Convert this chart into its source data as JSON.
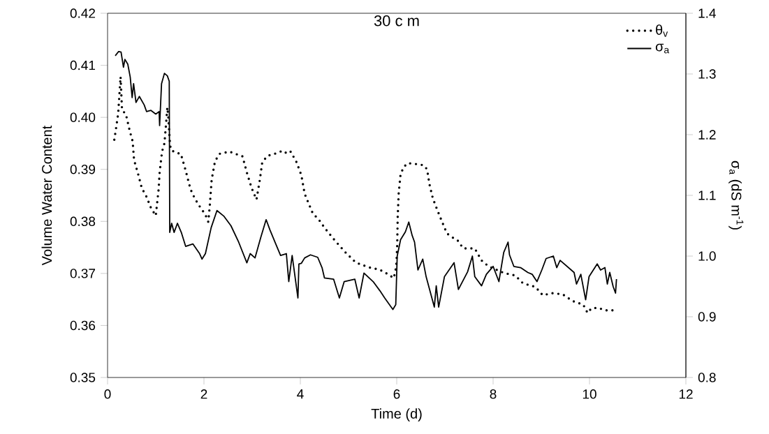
{
  "chart_data": {
    "type": "line",
    "title": "30 c m",
    "xlabel": "Time (d)",
    "ylabel": "Volume Water Content",
    "y2label": "σ$_{a}$ (dS m$^{-1}$)",
    "xlim": [
      0,
      12
    ],
    "xticks": [
      0,
      2,
      4,
      6,
      8,
      10,
      12
    ],
    "ylim": [
      0.35,
      0.42
    ],
    "yticks": [
      0.35,
      0.36,
      0.37,
      0.38,
      0.39,
      {
        "value": 0.4,
        "label": "0.40"
      },
      0.41,
      0.42
    ],
    "y2lim": [
      0.8,
      1.4
    ],
    "y2ticks": [
      0.8,
      0.9,
      {
        "value": 1.0,
        "label": "1.0"
      },
      1.1,
      1.2,
      1.3,
      1.4
    ],
    "legend": "top right",
    "series": [
      {
        "name": "θ$_{v}$",
        "color": "#000000",
        "line_style": "dotted",
        "x": [
          0.14,
          0.17,
          0.22,
          0.26,
          0.27,
          0.3,
          0.38,
          0.46,
          0.52,
          0.55,
          0.64,
          0.71,
          0.81,
          0.9,
          1.0,
          1.06,
          1.08,
          1.13,
          1.18,
          1.21,
          1.24,
          1.26,
          1.29,
          1.31,
          1.41,
          1.52,
          1.62,
          1.72,
          1.81,
          1.91,
          2.03,
          2.09,
          2.12,
          2.16,
          2.23,
          2.33,
          2.53,
          2.65,
          2.8,
          2.89,
          2.99,
          3.09,
          3.16,
          3.21,
          3.32,
          3.47,
          3.64,
          3.73,
          3.8,
          3.92,
          4.02,
          4.09,
          4.26,
          4.38,
          4.5,
          4.71,
          4.93,
          5.15,
          5.41,
          5.65,
          5.79,
          5.94,
          5.99,
          6.01,
          6.02,
          6.04,
          6.08,
          6.15,
          6.23,
          6.42,
          6.56,
          6.63,
          6.68,
          6.75,
          6.85,
          6.92,
          7.04,
          7.14,
          7.26,
          7.38,
          7.62,
          7.76,
          7.9,
          8.22,
          8.46,
          8.62,
          8.88,
          9.03,
          9.22,
          9.44,
          9.65,
          9.87,
          9.96,
          10.04,
          10.18,
          10.32,
          10.49,
          10.54
        ],
        "values": [
          0.3957,
          0.3975,
          0.4007,
          0.4064,
          0.4078,
          0.4014,
          0.4006,
          0.3974,
          0.3954,
          0.3918,
          0.3889,
          0.3864,
          0.3847,
          0.3826,
          0.3811,
          0.3862,
          0.3894,
          0.3934,
          0.395,
          0.3983,
          0.4019,
          0.4001,
          0.3956,
          0.3938,
          0.3932,
          0.393,
          0.3898,
          0.3862,
          0.3844,
          0.3829,
          0.3813,
          0.3799,
          0.3829,
          0.388,
          0.3916,
          0.393,
          0.3934,
          0.393,
          0.3925,
          0.3894,
          0.3864,
          0.3842,
          0.388,
          0.3914,
          0.3926,
          0.393,
          0.3936,
          0.393,
          0.3934,
          0.3914,
          0.3889,
          0.3853,
          0.3815,
          0.3804,
          0.3788,
          0.3764,
          0.3741,
          0.3721,
          0.3712,
          0.3707,
          0.37,
          0.3691,
          0.3713,
          0.3754,
          0.3808,
          0.3853,
          0.3891,
          0.3905,
          0.3912,
          0.391,
          0.3908,
          0.39,
          0.3871,
          0.3844,
          0.382,
          0.3804,
          0.3777,
          0.377,
          0.3764,
          0.3748,
          0.3748,
          0.3725,
          0.3714,
          0.3701,
          0.3696,
          0.3681,
          0.3674,
          0.3658,
          0.3662,
          0.366,
          0.3647,
          0.364,
          0.3624,
          0.3633,
          0.3634,
          0.3629,
          0.3629,
          0.3629
        ]
      },
      {
        "name": "σ$_{a}$",
        "color": "#000000",
        "line_style": "solid",
        "axis": "y2",
        "x": [
          0.16,
          0.23,
          0.28,
          0.33,
          0.36,
          0.42,
          0.47,
          0.51,
          0.54,
          0.59,
          0.66,
          0.76,
          0.81,
          0.9,
          1.0,
          1.07,
          1.08,
          1.12,
          1.18,
          1.24,
          1.28,
          1.29,
          1.33,
          1.38,
          1.45,
          1.53,
          1.62,
          1.77,
          1.91,
          1.96,
          2.03,
          2.15,
          2.27,
          2.41,
          2.56,
          2.72,
          2.89,
          2.96,
          3.06,
          3.18,
          3.29,
          3.37,
          3.49,
          3.59,
          3.71,
          3.76,
          3.83,
          3.95,
          3.97,
          4.02,
          4.09,
          4.21,
          4.36,
          4.45,
          4.5,
          4.69,
          4.81,
          4.91,
          5.13,
          5.22,
          5.32,
          5.51,
          5.65,
          5.75,
          5.92,
          5.98,
          6.01,
          6.08,
          6.18,
          6.25,
          6.32,
          6.37,
          6.44,
          6.54,
          6.61,
          6.78,
          6.82,
          6.87,
          6.99,
          7.19,
          7.28,
          7.47,
          7.57,
          7.62,
          7.76,
          7.86,
          8.0,
          8.12,
          8.22,
          8.31,
          8.34,
          8.43,
          8.57,
          8.72,
          8.81,
          8.91,
          9.01,
          9.1,
          9.25,
          9.32,
          9.39,
          9.68,
          9.73,
          9.82,
          9.92,
          9.99,
          10.16,
          10.23,
          10.32,
          10.37,
          10.42,
          10.49,
          10.54,
          10.56
        ],
        "values": [
          1.33,
          1.337,
          1.336,
          1.311,
          1.324,
          1.316,
          1.295,
          1.261,
          1.284,
          1.253,
          1.263,
          1.249,
          1.238,
          1.24,
          1.234,
          1.238,
          1.215,
          1.284,
          1.301,
          1.297,
          1.288,
          1.039,
          1.054,
          1.039,
          1.054,
          1.039,
          1.016,
          1.02,
          1.004,
          0.995,
          1.004,
          1.047,
          1.075,
          1.066,
          1.05,
          1.023,
          0.989,
          1.004,
          0.997,
          1.031,
          1.06,
          1.043,
          1.02,
          1.001,
          1.004,
          0.958,
          1.001,
          0.931,
          0.987,
          0.988,
          0.997,
          1.002,
          0.998,
          0.981,
          0.964,
          0.962,
          0.931,
          0.958,
          0.962,
          0.931,
          0.972,
          0.958,
          0.943,
          0.931,
          0.912,
          0.92,
          1.0,
          1.027,
          1.04,
          1.056,
          1.034,
          1.023,
          0.977,
          0.995,
          0.966,
          0.916,
          0.951,
          0.916,
          0.966,
          0.989,
          0.945,
          0.974,
          1.0,
          0.966,
          0.951,
          0.97,
          0.983,
          0.958,
          1.006,
          1.023,
          1.002,
          0.983,
          0.981,
          0.973,
          0.97,
          0.958,
          0.977,
          0.996,
          1.0,
          0.981,
          0.993,
          0.973,
          0.954,
          0.97,
          0.928,
          0.966,
          0.987,
          0.977,
          0.981,
          0.954,
          0.973,
          0.95,
          0.939,
          0.962
        ]
      }
    ]
  }
}
